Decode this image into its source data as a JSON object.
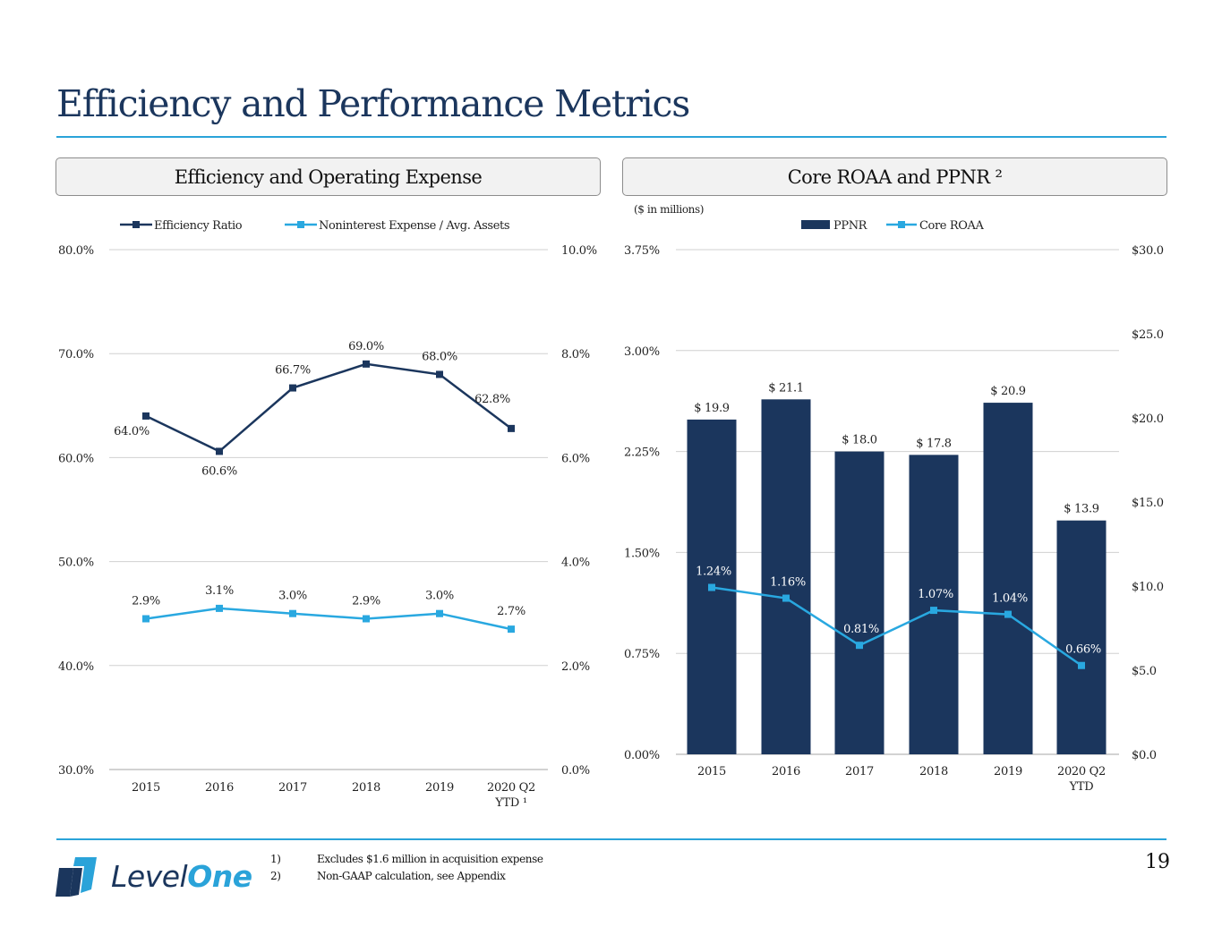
{
  "page": {
    "title": "Efficiency and Performance Metrics",
    "page_number": "19",
    "brand": {
      "logo_text_part1": "Level",
      "logo_text_part2": "One",
      "navy": "#1b365d",
      "accent": "#2aa3d9"
    },
    "footnotes": [
      {
        "num": "1)",
        "text": "Excludes $1.6 million in acquisition expense"
      },
      {
        "num": "2)",
        "text": "Non-GAAP calculation, see Appendix"
      }
    ]
  },
  "panels": {
    "left_header": "Efficiency and Operating Expense",
    "right_header": "Core ROAA and PPNR ²",
    "right_note": "($ in millions)"
  },
  "chart_data": [
    {
      "type": "line",
      "title": "Efficiency and Operating Expense",
      "categories": [
        "2015",
        "2016",
        "2017",
        "2018",
        "2019",
        "2020 Q2\nYTD ¹"
      ],
      "category_lines": [
        [
          "2015"
        ],
        [
          "2016"
        ],
        [
          "2017"
        ],
        [
          "2018"
        ],
        [
          "2019"
        ],
        [
          "2020 Q2",
          "YTD ¹"
        ]
      ],
      "series": [
        {
          "name": "Efficiency Ratio",
          "axis": "left",
          "color": "#1b365d",
          "marker": "square",
          "values": [
            64.0,
            60.6,
            66.7,
            69.0,
            68.0,
            62.8
          ],
          "labels": [
            "64.0%",
            "60.6%",
            "66.7%",
            "69.0%",
            "68.0%",
            "62.8%"
          ]
        },
        {
          "name": "Noninterest Expense / Avg. Assets",
          "axis": "right",
          "color": "#29a8e0",
          "marker": "square",
          "values": [
            2.9,
            3.1,
            3.0,
            2.9,
            3.0,
            2.7
          ],
          "labels": [
            "2.9%",
            "3.1%",
            "3.0%",
            "2.9%",
            "3.0%",
            "2.7%"
          ]
        }
      ],
      "y_left": {
        "range": [
          30,
          80
        ],
        "ticks": [
          30,
          40,
          50,
          60,
          70,
          80
        ],
        "tick_labels": [
          "30.0%",
          "40.0%",
          "50.0%",
          "60.0%",
          "70.0%",
          "80.0%"
        ]
      },
      "y_right": {
        "range": [
          0,
          10
        ],
        "ticks": [
          0,
          2,
          4,
          6,
          8,
          10
        ],
        "tick_labels": [
          "0.0%",
          "2.0%",
          "4.0%",
          "6.0%",
          "8.0%",
          "10.0%"
        ]
      },
      "grid": true,
      "legend": "top-center"
    },
    {
      "type": "bar",
      "title": "Core ROAA and PPNR ²",
      "subtitle": "($ in millions)",
      "categories": [
        "2015",
        "2016",
        "2017",
        "2018",
        "2019",
        "2020 Q2\nYTD"
      ],
      "category_lines": [
        [
          "2015"
        ],
        [
          "2016"
        ],
        [
          "2017"
        ],
        [
          "2018"
        ],
        [
          "2019"
        ],
        [
          "2020 Q2",
          "YTD"
        ]
      ],
      "series": [
        {
          "name": "PPNR",
          "type": "bar",
          "axis": "right",
          "color": "#1b365d",
          "values": [
            19.9,
            21.1,
            18.0,
            17.8,
            20.9,
            13.9
          ],
          "labels": [
            "$ 19.9",
            "$ 21.1",
            "$ 18.0",
            "$ 17.8",
            "$ 20.9",
            "$ 13.9"
          ]
        },
        {
          "name": "Core ROAA",
          "type": "line",
          "axis": "left",
          "color": "#29a8e0",
          "marker": "square",
          "values": [
            1.24,
            1.16,
            0.81,
            1.07,
            1.04,
            0.66
          ],
          "labels": [
            "1.24%",
            "1.16%",
            "0.81%",
            "1.07%",
            "1.04%",
            "0.66%"
          ]
        }
      ],
      "y_left": {
        "range": [
          0,
          3.75
        ],
        "ticks": [
          0,
          0.75,
          1.5,
          2.25,
          3.0,
          3.75
        ],
        "tick_labels": [
          "0.00%",
          "0.75%",
          "1.50%",
          "2.25%",
          "3.00%",
          "3.75%"
        ]
      },
      "y_right": {
        "range": [
          0,
          30
        ],
        "ticks": [
          0,
          5,
          10,
          15,
          20,
          25,
          30
        ],
        "tick_labels": [
          "$0.0",
          "$5.0",
          "$10.0",
          "$15.0",
          "$20.0",
          "$25.0",
          "$30.0"
        ]
      },
      "grid": true,
      "legend": "top-center"
    }
  ]
}
